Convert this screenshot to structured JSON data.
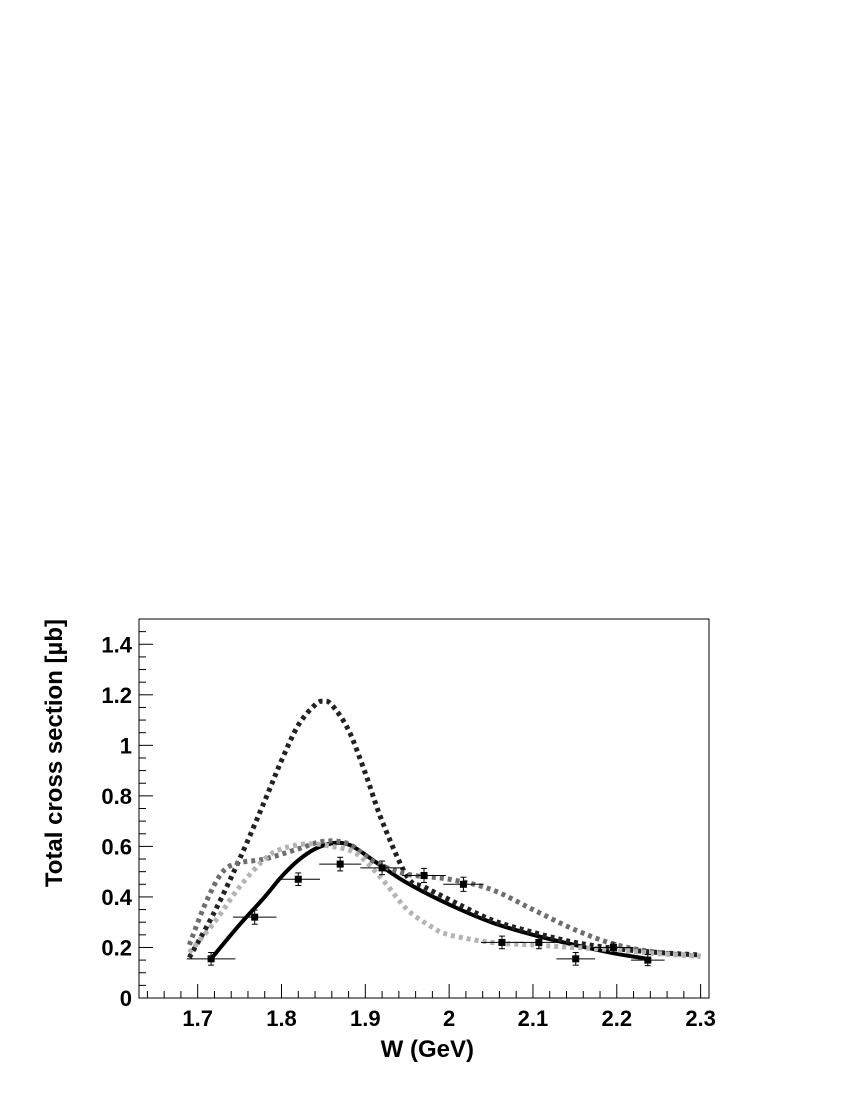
{
  "chart_data": {
    "type": "line",
    "title": "",
    "xlabel": "W (GeV)",
    "ylabel": "Total cross section [µb]",
    "xlim": [
      1.63,
      2.31
    ],
    "ylim": [
      0,
      1.5
    ],
    "xticks": [
      1.7,
      1.8,
      1.9,
      2.0,
      2.1,
      2.2,
      2.3
    ],
    "xtick_labels": [
      "1.7",
      "1.8",
      "1.9",
      "2",
      "2.1",
      "2.2",
      "2.3"
    ],
    "yticks": [
      0,
      0.2,
      0.4,
      0.6,
      0.8,
      1.0,
      1.2,
      1.4
    ],
    "ytick_labels": [
      "0",
      "0.2",
      "0.4",
      "0.6",
      "0.8",
      "1",
      "1.2",
      "1.4"
    ],
    "grid": false,
    "legend": "none",
    "series": [
      {
        "kind": "points",
        "color": "#000000",
        "style": "square-marker-with-error-bars",
        "points": [
          {
            "x": 1.716,
            "y": 0.155,
            "xerr": 0.029,
            "yerr": 0.025
          },
          {
            "x": 1.768,
            "y": 0.32,
            "xerr": 0.026,
            "yerr": 0.028
          },
          {
            "x": 1.82,
            "y": 0.47,
            "xerr": 0.026,
            "yerr": 0.025
          },
          {
            "x": 1.87,
            "y": 0.53,
            "xerr": 0.025,
            "yerr": 0.027
          },
          {
            "x": 1.92,
            "y": 0.515,
            "xerr": 0.026,
            "yerr": 0.027
          },
          {
            "x": 1.97,
            "y": 0.485,
            "xerr": 0.026,
            "yerr": 0.028
          },
          {
            "x": 2.017,
            "y": 0.45,
            "xerr": 0.024,
            "yerr": 0.028
          },
          {
            "x": 2.063,
            "y": 0.22,
            "xerr": 0.025,
            "yerr": 0.025
          },
          {
            "x": 2.107,
            "y": 0.22,
            "xerr": 0.023,
            "yerr": 0.025
          },
          {
            "x": 2.151,
            "y": 0.155,
            "xerr": 0.023,
            "yerr": 0.025
          },
          {
            "x": 2.196,
            "y": 0.2,
            "xerr": 0.024,
            "yerr": 0.018
          },
          {
            "x": 2.237,
            "y": 0.15,
            "xerr": 0.02,
            "yerr": 0.022
          }
        ]
      },
      {
        "kind": "curve",
        "color": "#000000",
        "dash": "solid",
        "x": [
          1.716,
          1.75,
          1.78,
          1.8,
          1.82,
          1.84,
          1.86,
          1.875,
          1.89,
          1.92,
          1.95,
          2.0,
          2.05,
          2.1,
          2.15,
          2.2,
          2.237
        ],
        "y": [
          0.155,
          0.29,
          0.4,
          0.48,
          0.545,
          0.59,
          0.612,
          0.612,
          0.59,
          0.52,
          0.455,
          0.37,
          0.3,
          0.25,
          0.21,
          0.175,
          0.155
        ]
      },
      {
        "kind": "curve",
        "color": "#222222",
        "dash": "dotted",
        "x": [
          1.69,
          1.72,
          1.75,
          1.78,
          1.8,
          1.82,
          1.84,
          1.85,
          1.86,
          1.88,
          1.9,
          1.92,
          1.95,
          1.97,
          2.0,
          2.05,
          2.1,
          2.15,
          2.2,
          2.25,
          2.3
        ],
        "y": [
          0.16,
          0.34,
          0.55,
          0.78,
          0.94,
          1.08,
          1.16,
          1.175,
          1.16,
          1.06,
          0.89,
          0.7,
          0.48,
          0.44,
          0.39,
          0.31,
          0.26,
          0.22,
          0.195,
          0.18,
          0.17
        ]
      },
      {
        "kind": "curve",
        "color": "#6e6e6e",
        "dash": "dotted",
        "x": [
          1.69,
          1.71,
          1.73,
          1.75,
          1.78,
          1.82,
          1.85,
          1.88,
          1.91,
          1.95,
          2.0,
          2.05,
          2.1,
          2.15,
          2.2,
          2.25,
          2.3
        ],
        "y": [
          0.21,
          0.38,
          0.5,
          0.535,
          0.55,
          0.59,
          0.62,
          0.61,
          0.54,
          0.49,
          0.47,
          0.43,
          0.35,
          0.27,
          0.21,
          0.18,
          0.165
        ]
      },
      {
        "kind": "curve",
        "color": "#b4b4b4",
        "dash": "dotted",
        "x": [
          1.69,
          1.72,
          1.75,
          1.78,
          1.8,
          1.83,
          1.86,
          1.89,
          1.92,
          1.95,
          1.98,
          2.0,
          2.05,
          2.1,
          2.15,
          2.2,
          2.25,
          2.3
        ],
        "y": [
          0.18,
          0.3,
          0.44,
          0.55,
          0.59,
          0.61,
          0.6,
          0.57,
          0.47,
          0.35,
          0.28,
          0.25,
          0.22,
          0.21,
          0.2,
          0.19,
          0.175,
          0.165
        ]
      }
    ]
  }
}
